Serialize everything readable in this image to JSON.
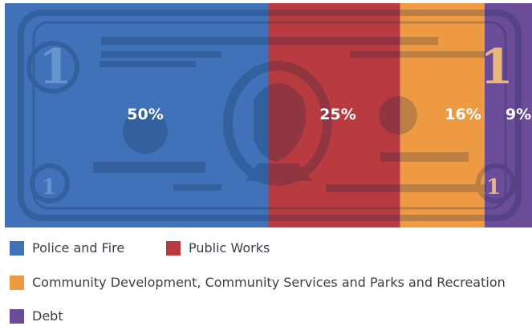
{
  "chart_data": {
    "type": "bar",
    "stacked": true,
    "orientation": "horizontal",
    "categories": [
      "Police and Fire",
      "Public Works",
      "Community Development, Community Services and Parks and Recreation",
      "Debt"
    ],
    "values": [
      50,
      25,
      16,
      9
    ],
    "data_labels": [
      "50%",
      "25%",
      "16%",
      "9%"
    ],
    "colors": [
      "#3f72b8",
      "#b83b3f",
      "#ee9a43",
      "#6a4c98"
    ],
    "title": "",
    "xlabel": "",
    "ylabel": "",
    "xlim": [
      0,
      100
    ],
    "legend_position": "bottom",
    "grid": false,
    "background": "dollar-bill"
  },
  "legend": [
    {
      "label": "Police and Fire",
      "color": "#3f72b8"
    },
    {
      "label": "Public Works",
      "color": "#b83b3f"
    },
    {
      "label": "Community Development, Community Services and Parks and Recreation",
      "color": "#ee9a43"
    },
    {
      "label": "Debt",
      "color": "#6a4c98"
    }
  ]
}
